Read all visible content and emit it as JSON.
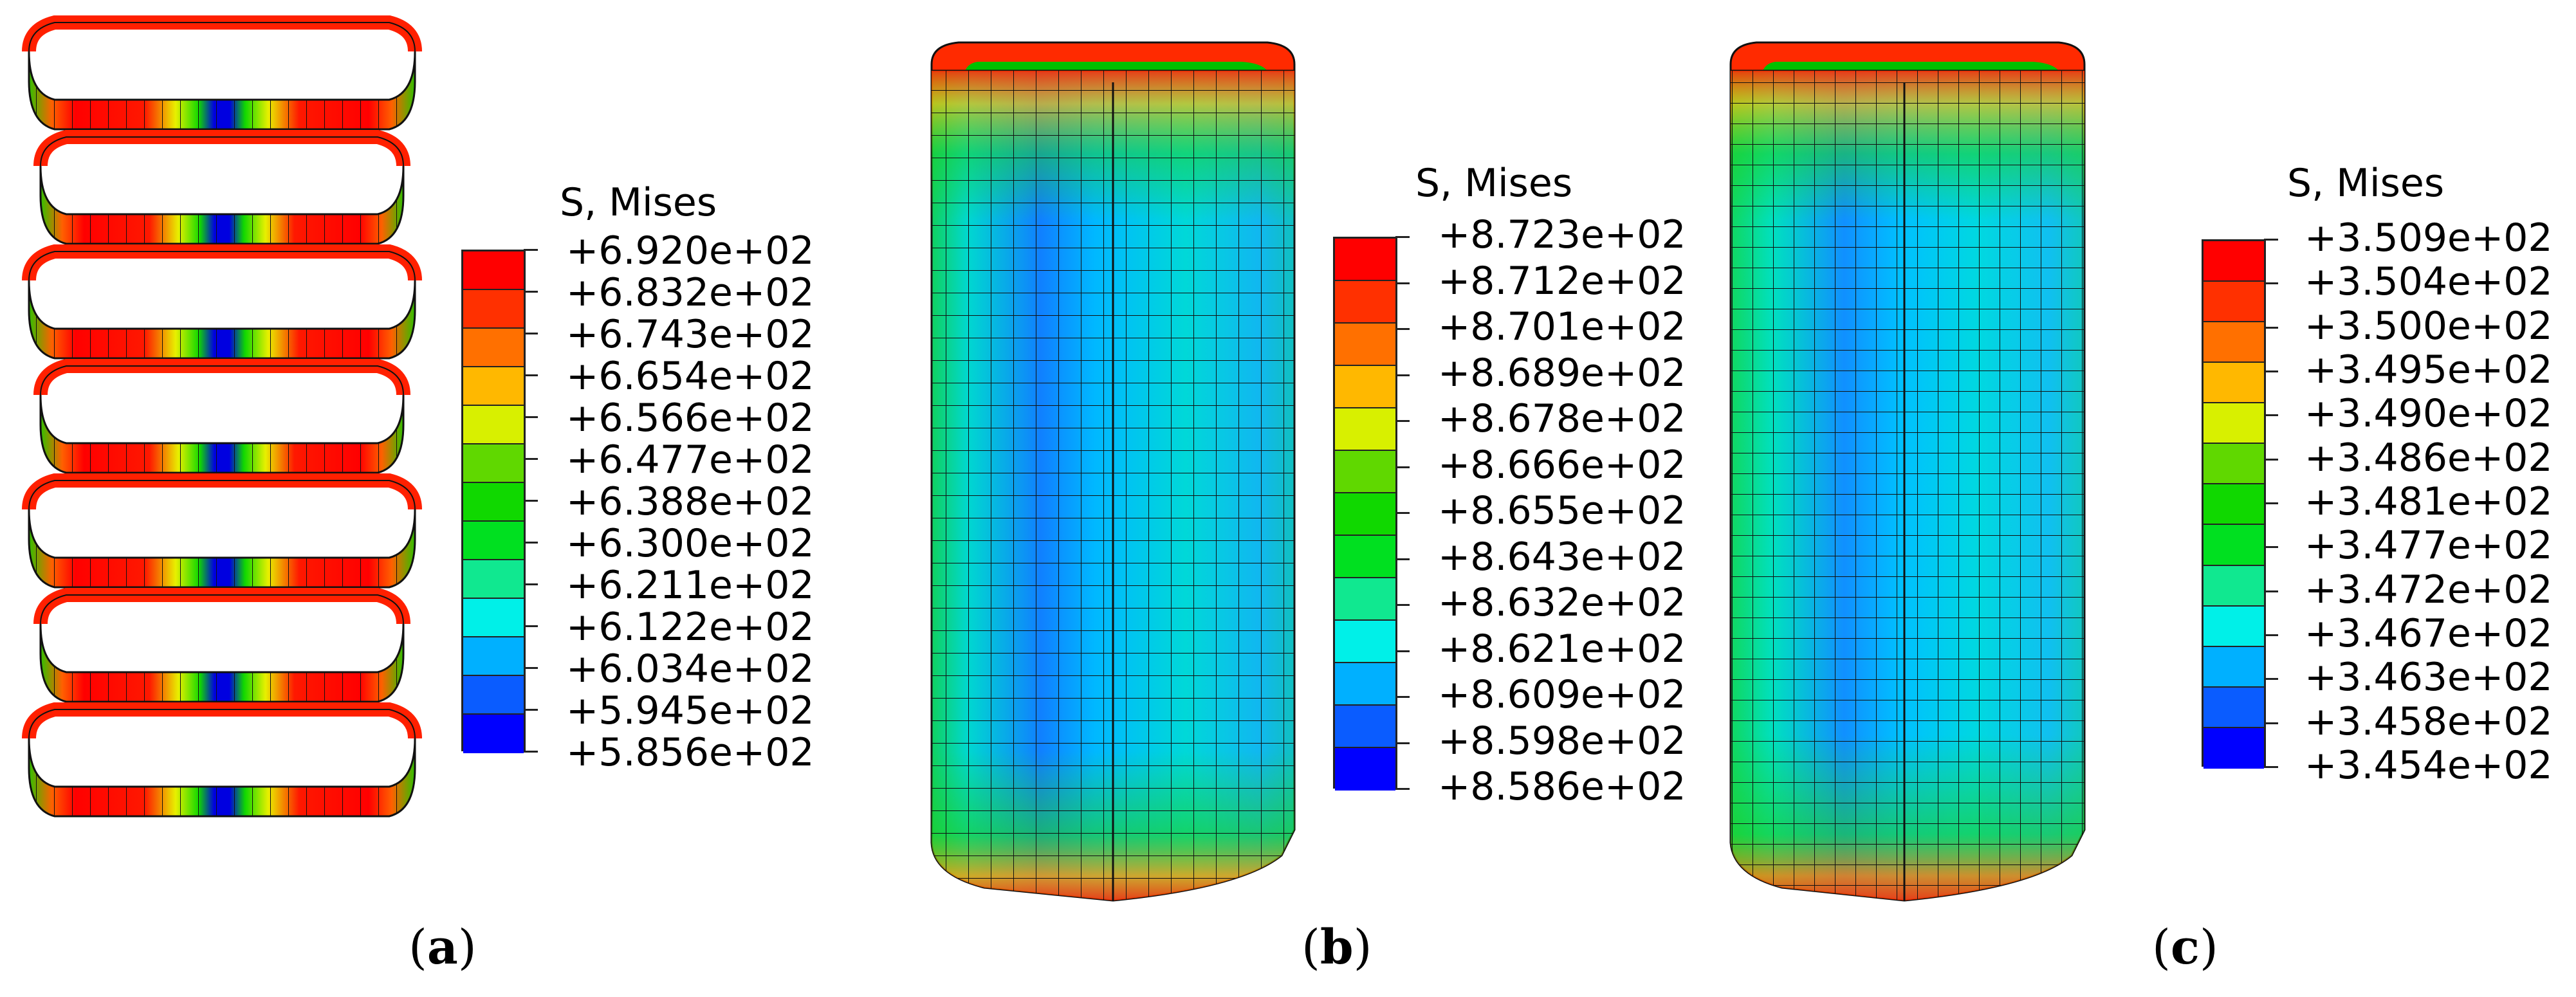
{
  "colors": {
    "contour": [
      "#0000ff",
      "#0a5cff",
      "#00b0ff",
      "#00f0e8",
      "#10e890",
      "#00e020",
      "#10d800",
      "#60d800",
      "#d8f000",
      "#ffb800",
      "#ff7000",
      "#ff3000",
      "#ff0000"
    ],
    "background": "#ffffff"
  },
  "panels": [
    {
      "id": "a",
      "legend_title": "S, Mises",
      "legend_values": [
        "+6.920e+02",
        "+6.832e+02",
        "+6.743e+02",
        "+6.654e+02",
        "+6.566e+02",
        "+6.477e+02",
        "+6.388e+02",
        "+6.300e+02",
        "+6.211e+02",
        "+6.122e+02",
        "+6.034e+02",
        "+5.945e+02",
        "+5.856e+02"
      ],
      "caption_open": "(",
      "caption_letter": "a",
      "caption_close": ")"
    },
    {
      "id": "b",
      "legend_title": "S, Mises",
      "legend_values": [
        "+8.723e+02",
        "+8.712e+02",
        "+8.701e+02",
        "+8.689e+02",
        "+8.678e+02",
        "+8.666e+02",
        "+8.655e+02",
        "+8.643e+02",
        "+8.632e+02",
        "+8.621e+02",
        "+8.609e+02",
        "+8.598e+02",
        "+8.586e+02"
      ],
      "caption_open": "(",
      "caption_letter": "b",
      "caption_close": ")"
    },
    {
      "id": "c",
      "legend_title": "S, Mises",
      "legend_values": [
        "+3.509e+02",
        "+3.504e+02",
        "+3.500e+02",
        "+3.495e+02",
        "+3.490e+02",
        "+3.486e+02",
        "+3.481e+02",
        "+3.477e+02",
        "+3.472e+02",
        "+3.467e+02",
        "+3.463e+02",
        "+3.458e+02",
        "+3.454e+02"
      ],
      "caption_open": "(",
      "caption_letter": "c",
      "caption_close": ")"
    }
  ]
}
